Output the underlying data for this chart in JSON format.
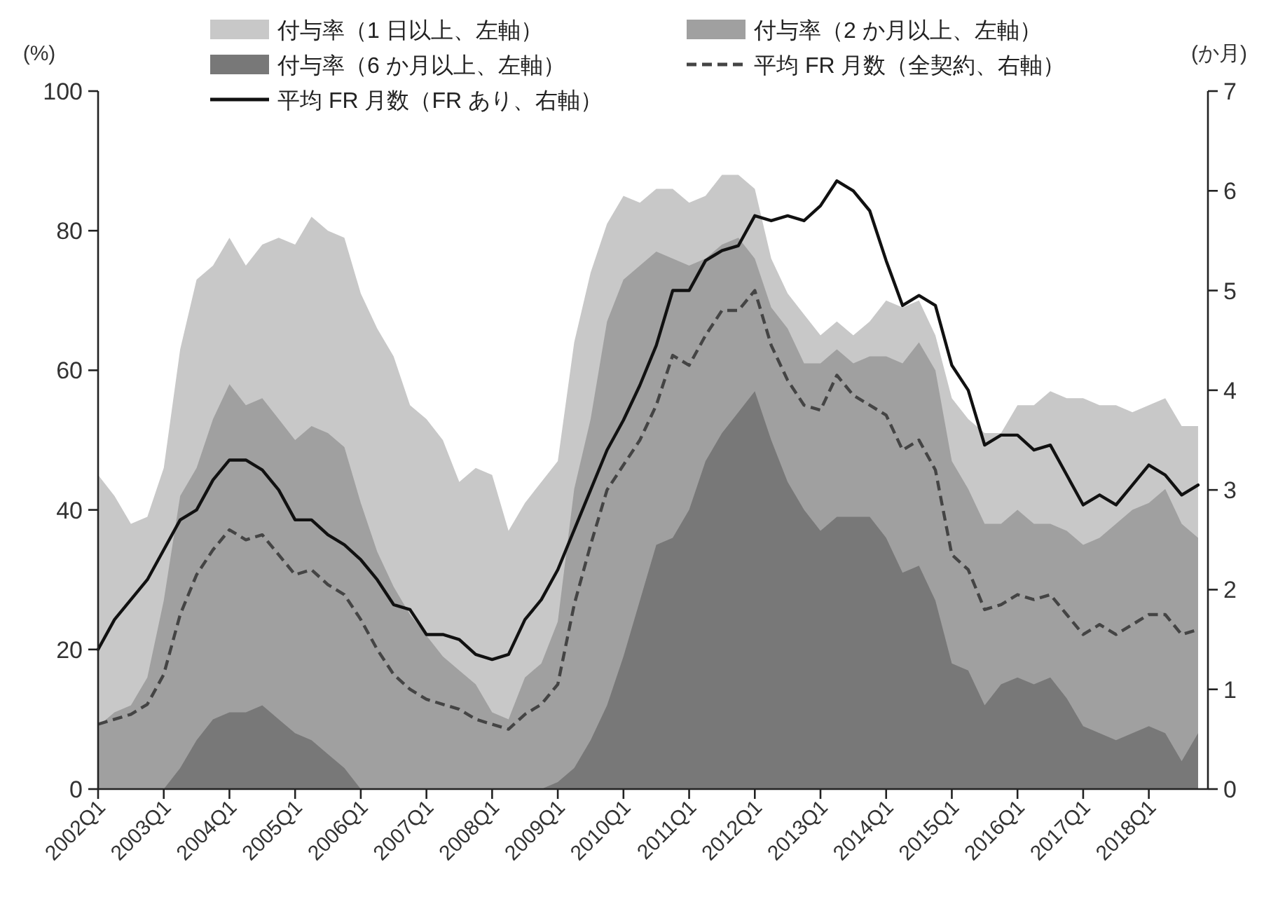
{
  "chart_data": {
    "type": "area",
    "ylabel": "(%)",
    "y2label": "(か月)",
    "legend": "top",
    "categories": [
      "2002Q1",
      null,
      null,
      null,
      "2003Q1",
      null,
      null,
      null,
      "2004Q1",
      null,
      null,
      null,
      "2005Q1",
      null,
      null,
      null,
      "2006Q1",
      null,
      null,
      null,
      "2007Q1",
      null,
      null,
      null,
      "2008Q1",
      null,
      null,
      null,
      "2009Q1",
      null,
      null,
      null,
      "2010Q1",
      null,
      null,
      null,
      "2011Q1",
      null,
      null,
      null,
      "2012Q1",
      null,
      null,
      null,
      "2013Q1",
      null,
      null,
      null,
      "2014Q1",
      null,
      null,
      null,
      "2015Q1",
      null,
      null,
      null,
      "2016Q1",
      null,
      null,
      null,
      "2017Q1",
      null,
      null,
      null,
      "2018Q1",
      null,
      null,
      null
    ],
    "ylim": [
      0,
      100
    ],
    "yticks": [
      0,
      20,
      40,
      60,
      80,
      100
    ],
    "y2lim": [
      0,
      7
    ],
    "y2ticks": [
      0,
      1,
      2,
      3,
      4,
      5,
      6,
      7
    ],
    "series": [
      {
        "name": "付与率（1 日以上、左軸）",
        "type": "area",
        "color": "#c8c8c8",
        "values": [
          45,
          42,
          38,
          39,
          46,
          63,
          73,
          75,
          79,
          75,
          78,
          79,
          78,
          82,
          80,
          79,
          71,
          66,
          62,
          55,
          53,
          50,
          44,
          46,
          45,
          37,
          41,
          44,
          47,
          64,
          74,
          81,
          85,
          84,
          86,
          86,
          84,
          85,
          88,
          88,
          86,
          76,
          71,
          68,
          65,
          67,
          65,
          67,
          70,
          69,
          70,
          65,
          56,
          53,
          51,
          51,
          55,
          55,
          57,
          56,
          56,
          55,
          55,
          54,
          55,
          56,
          52,
          52
        ]
      },
      {
        "name": "付与率（2 か月以上、左軸）",
        "type": "area",
        "color": "#a0a0a0",
        "values": [
          9,
          11,
          12,
          16,
          27,
          42,
          46,
          53,
          58,
          55,
          56,
          53,
          50,
          52,
          51,
          49,
          41,
          34,
          29,
          25,
          22,
          19,
          17,
          15,
          11,
          10,
          16,
          18,
          24,
          43,
          53,
          67,
          73,
          75,
          77,
          76,
          75,
          76,
          78,
          79,
          76,
          69,
          66,
          61,
          61,
          63,
          61,
          62,
          62,
          61,
          64,
          60,
          47,
          43,
          38,
          38,
          40,
          38,
          38,
          37,
          35,
          36,
          38,
          40,
          41,
          43,
          38,
          36
        ]
      },
      {
        "name": "付与率（6 か月以上、左軸）",
        "type": "area",
        "color": "#787878",
        "values": [
          0,
          0,
          0,
          0,
          0,
          3,
          7,
          10,
          11,
          11,
          12,
          10,
          8,
          7,
          5,
          3,
          0,
          0,
          0,
          0,
          0,
          0,
          0,
          0,
          0,
          0,
          0,
          0,
          1,
          3,
          7,
          12,
          19,
          27,
          35,
          36,
          40,
          47,
          51,
          54,
          57,
          50,
          44,
          40,
          37,
          39,
          39,
          39,
          36,
          31,
          32,
          27,
          18,
          17,
          12,
          15,
          16,
          15,
          16,
          13,
          9,
          8,
          7,
          8,
          9,
          8,
          4,
          8
        ]
      },
      {
        "name": "平均 FR 月数（全契約、右軸）",
        "type": "line",
        "axis": "y2",
        "line_style": "dashed",
        "color": "#444444",
        "values": [
          0.65,
          0.7,
          0.75,
          0.85,
          1.15,
          1.75,
          2.15,
          2.4,
          2.6,
          2.5,
          2.55,
          2.35,
          2.15,
          2.2,
          2.05,
          1.95,
          1.7,
          1.4,
          1.15,
          1.0,
          0.9,
          0.85,
          0.8,
          0.7,
          0.65,
          0.6,
          0.75,
          0.85,
          1.05,
          1.85,
          2.45,
          3.0,
          3.25,
          3.5,
          3.85,
          4.35,
          4.25,
          4.55,
          4.8,
          4.8,
          5.0,
          4.45,
          4.1,
          3.85,
          3.8,
          4.15,
          3.95,
          3.85,
          3.75,
          3.4,
          3.5,
          3.2,
          2.35,
          2.2,
          1.8,
          1.85,
          1.95,
          1.9,
          1.95,
          1.75,
          1.55,
          1.65,
          1.55,
          1.65,
          1.75,
          1.75,
          1.55,
          1.6
        ]
      },
      {
        "name": "平均 FR 月数（FR あり、右軸）",
        "type": "line",
        "axis": "y2",
        "line_style": "solid",
        "color": "#111111",
        "values": [
          1.4,
          1.7,
          1.9,
          2.1,
          2.4,
          2.7,
          2.8,
          3.1,
          3.3,
          3.3,
          3.2,
          3.0,
          2.7,
          2.7,
          2.55,
          2.45,
          2.3,
          2.1,
          1.85,
          1.8,
          1.55,
          1.55,
          1.5,
          1.35,
          1.3,
          1.35,
          1.7,
          1.9,
          2.2,
          2.6,
          3.0,
          3.4,
          3.7,
          4.05,
          4.45,
          5.0,
          5.0,
          5.3,
          5.4,
          5.45,
          5.75,
          5.7,
          5.75,
          5.7,
          5.85,
          6.1,
          6.0,
          5.8,
          5.3,
          4.85,
          4.95,
          4.85,
          4.25,
          4.0,
          3.45,
          3.55,
          3.55,
          3.4,
          3.45,
          3.15,
          2.85,
          2.95,
          2.85,
          3.05,
          3.25,
          3.15,
          2.95,
          3.05
        ]
      }
    ]
  }
}
